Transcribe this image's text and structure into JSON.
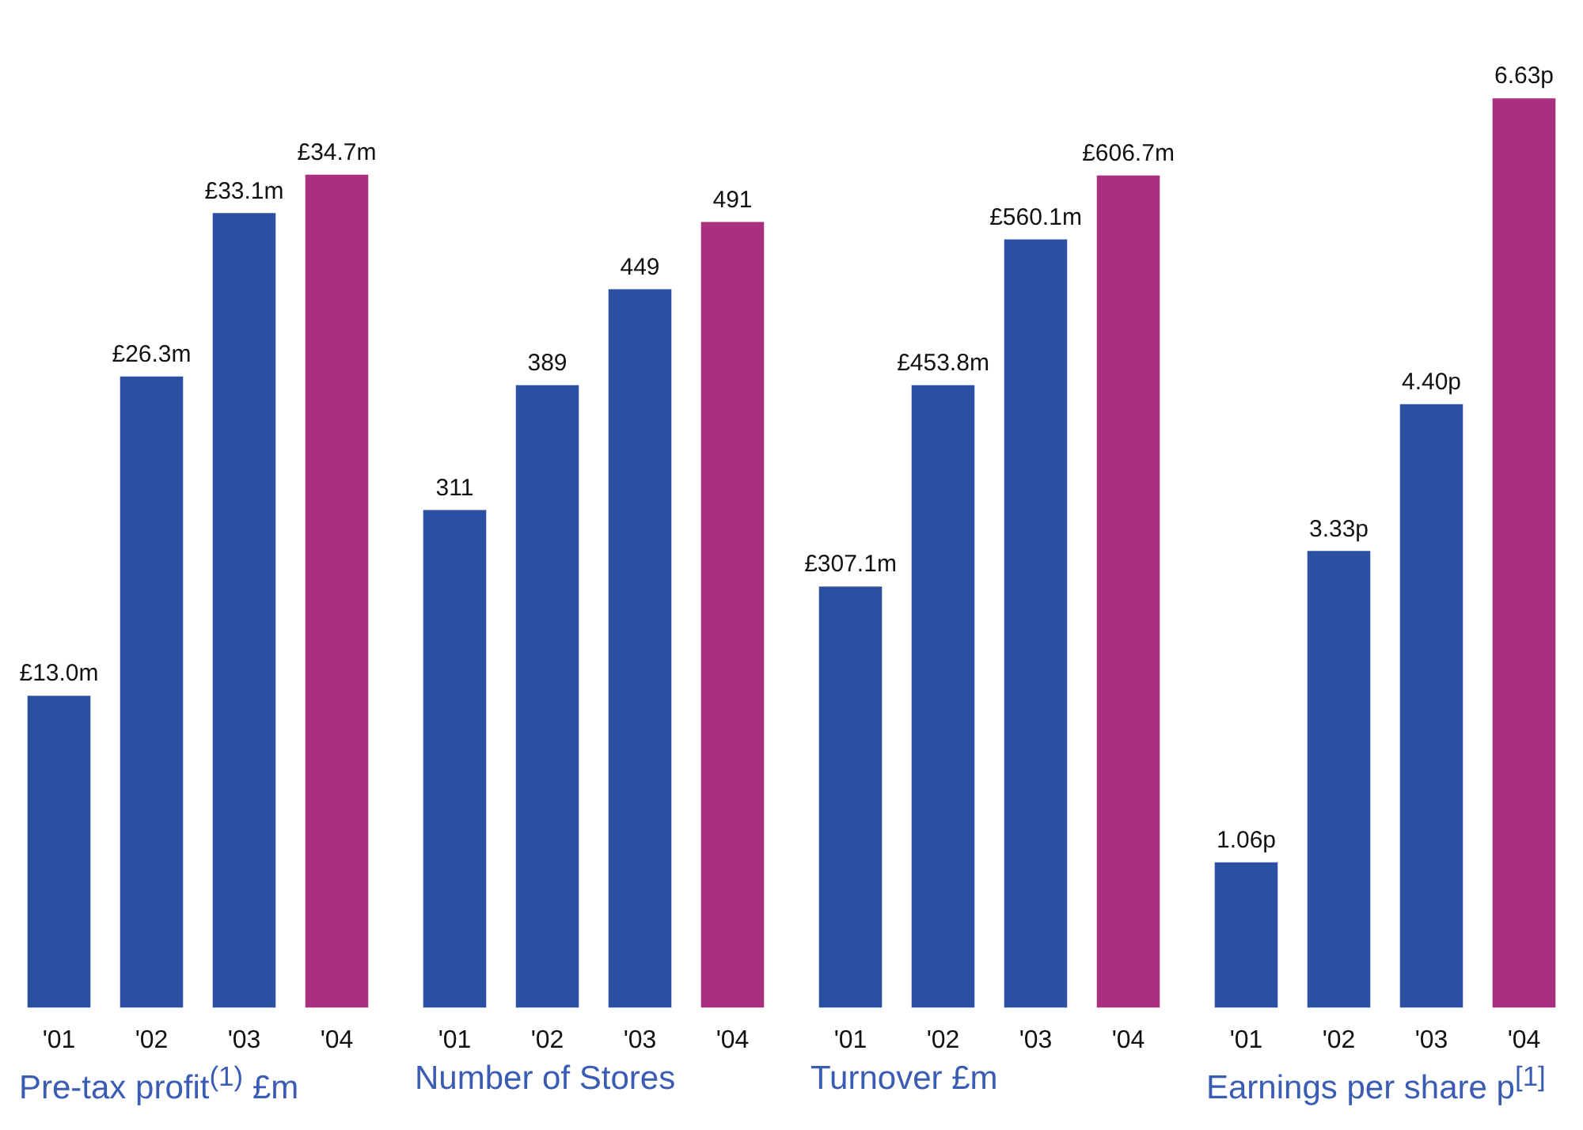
{
  "chart_data": [
    {
      "type": "bar",
      "title": "Pre-tax profit$^{(1)}$ £m",
      "categories": [
        "'01",
        "'02",
        "'03",
        "'04"
      ],
      "values": [
        13.0,
        26.3,
        33.1,
        34.7
      ],
      "colors": [
        "#2b50a2",
        "#2b50a2",
        "#2b50a2",
        "#a9307f"
      ],
      "value_labels": [
        "£13.0m",
        "£26.3m",
        "£33.1m",
        "£34.7m"
      ]
    },
    {
      "type": "bar",
      "title": "Number of Stores",
      "categories": [
        "'01",
        "'02",
        "'03",
        "'04"
      ],
      "values": [
        311,
        389,
        449,
        491
      ],
      "colors": [
        "#2b50a2",
        "#2b50a2",
        "#2b50a2",
        "#a9307f"
      ],
      "value_labels": [
        "311",
        "389",
        "449",
        "491"
      ]
    },
    {
      "type": "bar",
      "title": "Turnover £m",
      "categories": [
        "'01",
        "'02",
        "'03",
        "'04"
      ],
      "values": [
        307.1,
        453.8,
        560.1,
        606.7
      ],
      "colors": [
        "#2b50a2",
        "#2b50a2",
        "#2b50a2",
        "#a9307f"
      ],
      "value_labels": [
        "£307.1m",
        "£453.8m",
        "£560.1m",
        "£606.7m"
      ]
    },
    {
      "type": "bar",
      "title": "Earnings per share p$^{[1]}$",
      "categories": [
        "'01",
        "'02",
        "'03",
        "'04"
      ],
      "values": [
        1.06,
        3.33,
        4.4,
        6.63
      ],
      "colors": [
        "#2b50a2",
        "#2b50a2",
        "#2b50a2",
        "#a9307f"
      ],
      "value_labels": [
        "1.06p",
        "3.33p",
        "4.40p",
        "6.63p"
      ]
    }
  ]
}
